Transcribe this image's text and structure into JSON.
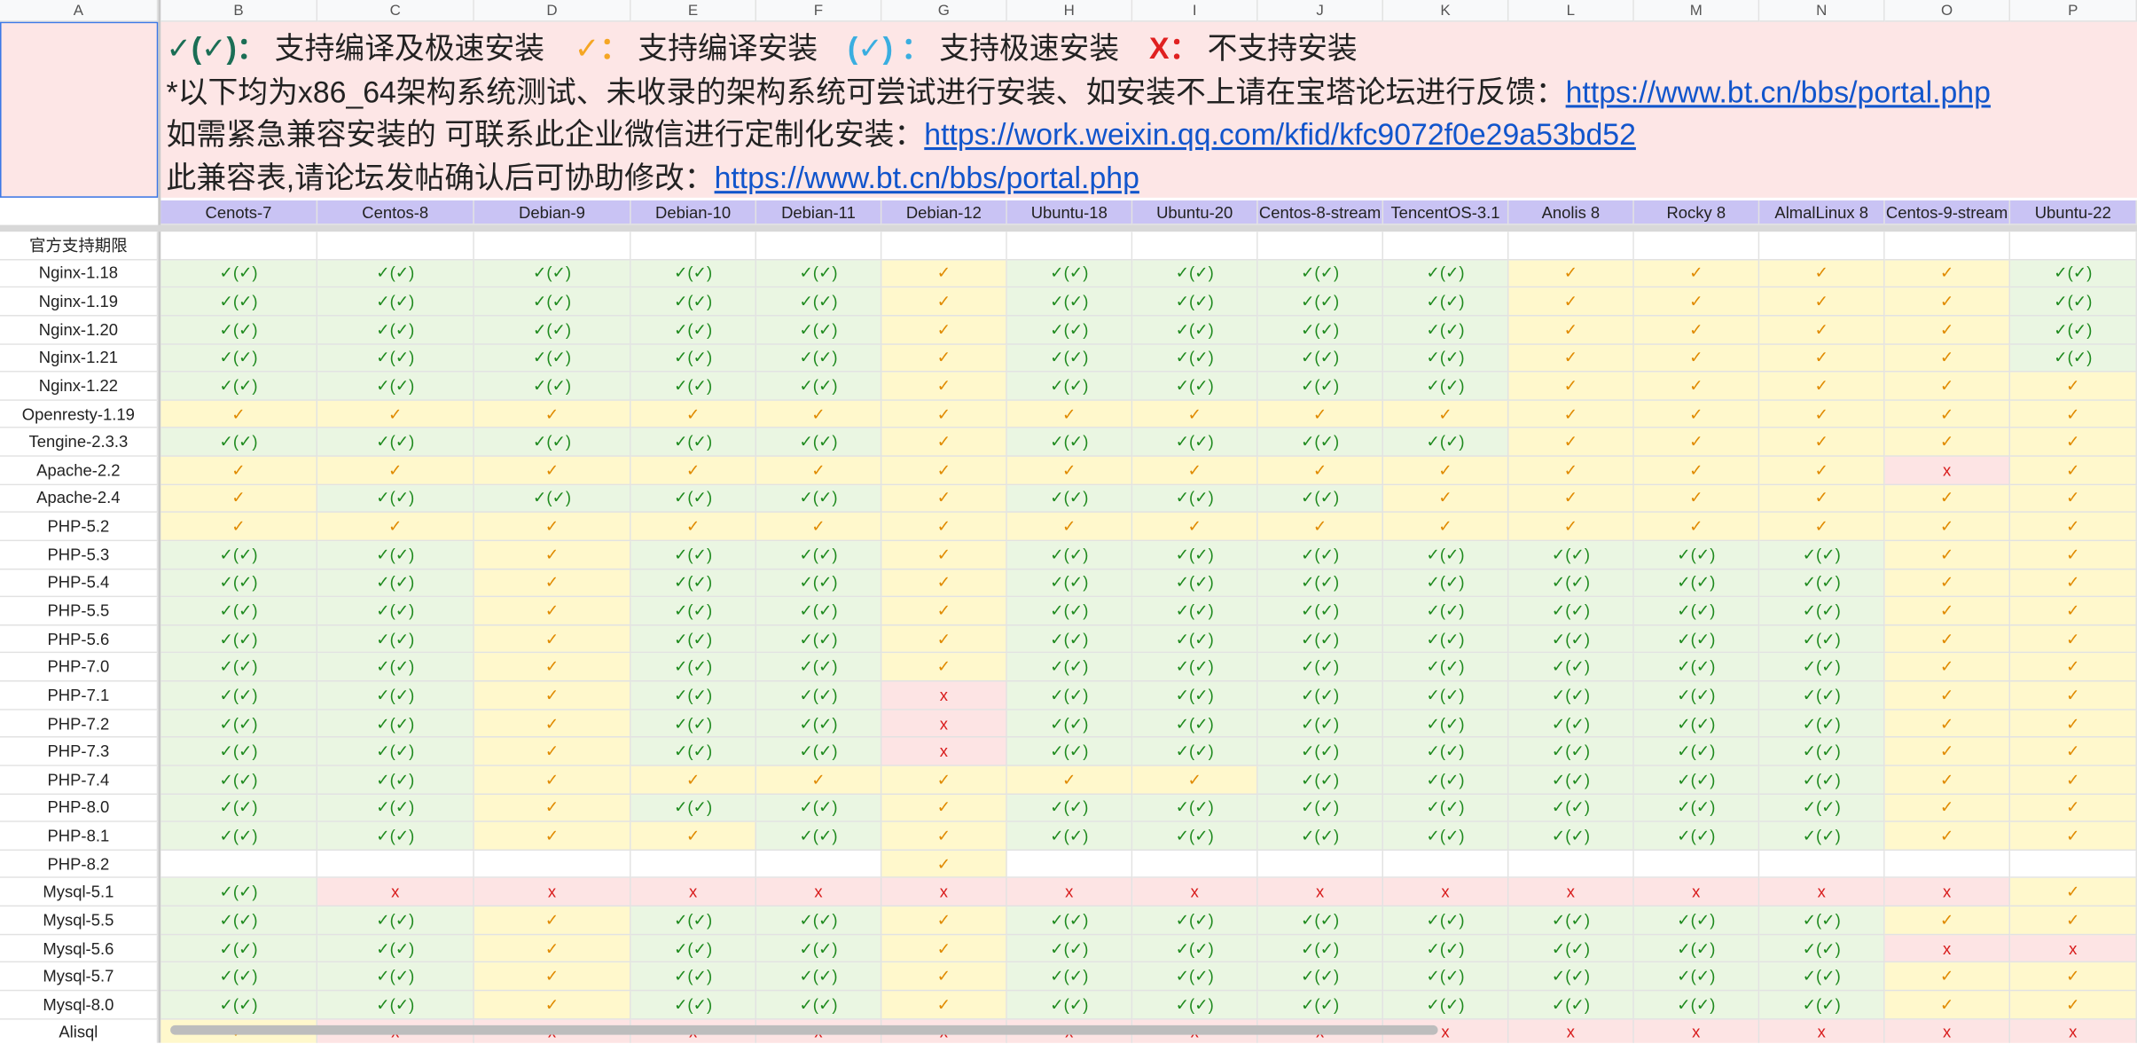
{
  "column_letters": [
    "A",
    "B",
    "C",
    "D",
    "E",
    "F",
    "G",
    "H",
    "I",
    "J",
    "K",
    "L",
    "M",
    "N",
    "O",
    "P"
  ],
  "legend": [
    {
      "mark": "✓(✓)：",
      "color": "#1b6e55",
      "text": "支持编译及极速安装"
    },
    {
      "mark": "✓：",
      "color": "#f5a623",
      "text": "支持编译安装"
    },
    {
      "mark": "(✓) ：",
      "color": "#3aaee0",
      "text": "支持极速安装"
    },
    {
      "mark": "X：",
      "color": "#e02020",
      "text": "不支持安装"
    }
  ],
  "notes": [
    {
      "text": "*以下均为x86_64架构系统测试、未收录的架构系统可尝试进行安装、如安装不上请在宝塔论坛进行反馈：",
      "link": "https://www.bt.cn/bbs/portal.php"
    },
    {
      "text": "如需紧急兼容安装的 可联系此企业微信进行定制化安装：",
      "link": "https://work.weixin.qq.com/kfid/kfc9072f0e29a53bd52"
    },
    {
      "text": "此兼容表,请论坛发帖确认后可协助修改：",
      "link": "https://www.bt.cn/bbs/portal.php"
    }
  ],
  "cell_styles": {
    "✓(✓)": {
      "bg": "#eaf6e2",
      "color": "#1e8a1e"
    },
    "✓": {
      "bg": "#fff8cc",
      "color": "#e08a00"
    },
    "x": {
      "bg": "#fde4e4",
      "color": "#d81b1b"
    }
  },
  "table": {
    "columns": [
      "Cenots-7",
      "Centos-8",
      "Debian-9",
      "Debian-10",
      "Debian-11",
      "Debian-12",
      "Ubuntu-18",
      "Ubuntu-20",
      "Centos-8-stream",
      "TencentOS-3.1",
      "Anolis 8",
      "Rocky 8",
      "AlmalLinux 8",
      "Centos-9-stream",
      "Ubuntu-22"
    ],
    "rows": [
      {
        "label": "官方支持期限",
        "cells": [
          null,
          null,
          null,
          null,
          null,
          null,
          null,
          null,
          null,
          null,
          null,
          null,
          null,
          null,
          null
        ]
      },
      {
        "label": "Nginx-1.18",
        "cells": [
          "✓(✓)",
          "✓(✓)",
          "✓(✓)",
          "✓(✓)",
          "✓(✓)",
          "✓",
          "✓(✓)",
          "✓(✓)",
          "✓(✓)",
          "✓(✓)",
          "✓",
          "✓",
          "✓",
          "✓",
          "✓(✓)"
        ]
      },
      {
        "label": "Nginx-1.19",
        "cells": [
          "✓(✓)",
          "✓(✓)",
          "✓(✓)",
          "✓(✓)",
          "✓(✓)",
          "✓",
          "✓(✓)",
          "✓(✓)",
          "✓(✓)",
          "✓(✓)",
          "✓",
          "✓",
          "✓",
          "✓",
          "✓(✓)"
        ]
      },
      {
        "label": "Nginx-1.20",
        "cells": [
          "✓(✓)",
          "✓(✓)",
          "✓(✓)",
          "✓(✓)",
          "✓(✓)",
          "✓",
          "✓(✓)",
          "✓(✓)",
          "✓(✓)",
          "✓(✓)",
          "✓",
          "✓",
          "✓",
          "✓",
          "✓(✓)"
        ]
      },
      {
        "label": "Nginx-1.21",
        "cells": [
          "✓(✓)",
          "✓(✓)",
          "✓(✓)",
          "✓(✓)",
          "✓(✓)",
          "✓",
          "✓(✓)",
          "✓(✓)",
          "✓(✓)",
          "✓(✓)",
          "✓",
          "✓",
          "✓",
          "✓",
          "✓(✓)"
        ]
      },
      {
        "label": "Nginx-1.22",
        "cells": [
          "✓(✓)",
          "✓(✓)",
          "✓(✓)",
          "✓(✓)",
          "✓(✓)",
          "✓",
          "✓(✓)",
          "✓(✓)",
          "✓(✓)",
          "✓(✓)",
          "✓",
          "✓",
          "✓",
          "✓",
          "✓"
        ]
      },
      {
        "label": "Openresty-1.19",
        "cells": [
          "✓",
          "✓",
          "✓",
          "✓",
          "✓",
          "✓",
          "✓",
          "✓",
          "✓",
          "✓",
          "✓",
          "✓",
          "✓",
          "✓",
          "✓"
        ]
      },
      {
        "label": "Tengine-2.3.3",
        "cells": [
          "✓(✓)",
          "✓(✓)",
          "✓(✓)",
          "✓(✓)",
          "✓(✓)",
          "✓",
          "✓(✓)",
          "✓(✓)",
          "✓(✓)",
          "✓(✓)",
          "✓",
          "✓",
          "✓",
          "✓",
          "✓"
        ]
      },
      {
        "label": "Apache-2.2",
        "cells": [
          "✓",
          "✓",
          "✓",
          "✓",
          "✓",
          "✓",
          "✓",
          "✓",
          "✓",
          "✓",
          "✓",
          "✓",
          "✓",
          "x",
          "✓"
        ]
      },
      {
        "label": "Apache-2.4",
        "cells": [
          "✓",
          "✓(✓)",
          "✓(✓)",
          "✓(✓)",
          "✓(✓)",
          "✓",
          "✓(✓)",
          "✓(✓)",
          "✓(✓)",
          "✓",
          "✓",
          "✓",
          "✓",
          "✓",
          "✓"
        ]
      },
      {
        "label": "PHP-5.2",
        "cells": [
          "✓",
          "✓",
          "✓",
          "✓",
          "✓",
          "✓",
          "✓",
          "✓",
          "✓",
          "✓",
          "✓",
          "✓",
          "✓",
          "✓",
          "✓"
        ]
      },
      {
        "label": "PHP-5.3",
        "cells": [
          "✓(✓)",
          "✓(✓)",
          "✓",
          "✓(✓)",
          "✓(✓)",
          "✓",
          "✓(✓)",
          "✓(✓)",
          "✓(✓)",
          "✓(✓)",
          "✓(✓)",
          "✓(✓)",
          "✓(✓)",
          "✓",
          "✓"
        ]
      },
      {
        "label": "PHP-5.4",
        "cells": [
          "✓(✓)",
          "✓(✓)",
          "✓",
          "✓(✓)",
          "✓(✓)",
          "✓",
          "✓(✓)",
          "✓(✓)",
          "✓(✓)",
          "✓(✓)",
          "✓(✓)",
          "✓(✓)",
          "✓(✓)",
          "✓",
          "✓"
        ]
      },
      {
        "label": "PHP-5.5",
        "cells": [
          "✓(✓)",
          "✓(✓)",
          "✓",
          "✓(✓)",
          "✓(✓)",
          "✓",
          "✓(✓)",
          "✓(✓)",
          "✓(✓)",
          "✓(✓)",
          "✓(✓)",
          "✓(✓)",
          "✓(✓)",
          "✓",
          "✓"
        ]
      },
      {
        "label": "PHP-5.6",
        "cells": [
          "✓(✓)",
          "✓(✓)",
          "✓",
          "✓(✓)",
          "✓(✓)",
          "✓",
          "✓(✓)",
          "✓(✓)",
          "✓(✓)",
          "✓(✓)",
          "✓(✓)",
          "✓(✓)",
          "✓(✓)",
          "✓",
          "✓"
        ]
      },
      {
        "label": "PHP-7.0",
        "cells": [
          "✓(✓)",
          "✓(✓)",
          "✓",
          "✓(✓)",
          "✓(✓)",
          "✓",
          "✓(✓)",
          "✓(✓)",
          "✓(✓)",
          "✓(✓)",
          "✓(✓)",
          "✓(✓)",
          "✓(✓)",
          "✓",
          "✓"
        ]
      },
      {
        "label": "PHP-7.1",
        "cells": [
          "✓(✓)",
          "✓(✓)",
          "✓",
          "✓(✓)",
          "✓(✓)",
          "x",
          "✓(✓)",
          "✓(✓)",
          "✓(✓)",
          "✓(✓)",
          "✓(✓)",
          "✓(✓)",
          "✓(✓)",
          "✓",
          "✓"
        ]
      },
      {
        "label": "PHP-7.2",
        "cells": [
          "✓(✓)",
          "✓(✓)",
          "✓",
          "✓(✓)",
          "✓(✓)",
          "x",
          "✓(✓)",
          "✓(✓)",
          "✓(✓)",
          "✓(✓)",
          "✓(✓)",
          "✓(✓)",
          "✓(✓)",
          "✓",
          "✓"
        ]
      },
      {
        "label": "PHP-7.3",
        "cells": [
          "✓(✓)",
          "✓(✓)",
          "✓",
          "✓(✓)",
          "✓(✓)",
          "x",
          "✓(✓)",
          "✓(✓)",
          "✓(✓)",
          "✓(✓)",
          "✓(✓)",
          "✓(✓)",
          "✓(✓)",
          "✓",
          "✓"
        ]
      },
      {
        "label": "PHP-7.4",
        "cells": [
          "✓(✓)",
          "✓(✓)",
          "✓",
          "✓",
          "✓",
          "✓",
          "✓",
          "✓",
          "✓(✓)",
          "✓(✓)",
          "✓(✓)",
          "✓(✓)",
          "✓(✓)",
          "✓",
          "✓"
        ]
      },
      {
        "label": "PHP-8.0",
        "cells": [
          "✓(✓)",
          "✓(✓)",
          "✓",
          "✓(✓)",
          "✓(✓)",
          "✓",
          "✓(✓)",
          "✓(✓)",
          "✓(✓)",
          "✓(✓)",
          "✓(✓)",
          "✓(✓)",
          "✓(✓)",
          "✓",
          "✓"
        ]
      },
      {
        "label": "PHP-8.1",
        "cells": [
          "✓(✓)",
          "✓(✓)",
          "✓",
          "✓",
          "✓(✓)",
          "✓",
          "✓(✓)",
          "✓(✓)",
          "✓(✓)",
          "✓(✓)",
          "✓(✓)",
          "✓(✓)",
          "✓(✓)",
          "✓",
          "✓"
        ]
      },
      {
        "label": "PHP-8.2",
        "cells": [
          null,
          null,
          null,
          null,
          null,
          "✓",
          null,
          null,
          null,
          null,
          null,
          null,
          null,
          null,
          null
        ]
      },
      {
        "label": "Mysql-5.1",
        "cells": [
          "✓(✓)",
          "x",
          "x",
          "x",
          "x",
          "x",
          "x",
          "x",
          "x",
          "x",
          "x",
          "x",
          "x",
          "x",
          "✓"
        ]
      },
      {
        "label": "Mysql-5.5",
        "cells": [
          "✓(✓)",
          "✓(✓)",
          "✓",
          "✓(✓)",
          "✓(✓)",
          "✓",
          "✓(✓)",
          "✓(✓)",
          "✓(✓)",
          "✓(✓)",
          "✓(✓)",
          "✓(✓)",
          "✓(✓)",
          "✓",
          "✓"
        ]
      },
      {
        "label": "Mysql-5.6",
        "cells": [
          "✓(✓)",
          "✓(✓)",
          "✓",
          "✓(✓)",
          "✓(✓)",
          "✓",
          "✓(✓)",
          "✓(✓)",
          "✓(✓)",
          "✓(✓)",
          "✓(✓)",
          "✓(✓)",
          "✓(✓)",
          "x",
          "x"
        ]
      },
      {
        "label": "Mysql-5.7",
        "cells": [
          "✓(✓)",
          "✓(✓)",
          "✓",
          "✓(✓)",
          "✓(✓)",
          "✓",
          "✓(✓)",
          "✓(✓)",
          "✓(✓)",
          "✓(✓)",
          "✓(✓)",
          "✓(✓)",
          "✓(✓)",
          "✓",
          "✓"
        ]
      },
      {
        "label": "Mysql-8.0",
        "cells": [
          "✓(✓)",
          "✓(✓)",
          "✓",
          "✓(✓)",
          "✓(✓)",
          "✓",
          "✓(✓)",
          "✓(✓)",
          "✓(✓)",
          "✓(✓)",
          "✓(✓)",
          "✓(✓)",
          "✓(✓)",
          "✓",
          "✓"
        ]
      },
      {
        "label": "Alisql",
        "cells": [
          "✓",
          "x",
          "x",
          "x",
          "x",
          "x",
          "x",
          "x",
          "x",
          "x",
          "x",
          "x",
          "x",
          "x",
          "x"
        ]
      }
    ]
  }
}
